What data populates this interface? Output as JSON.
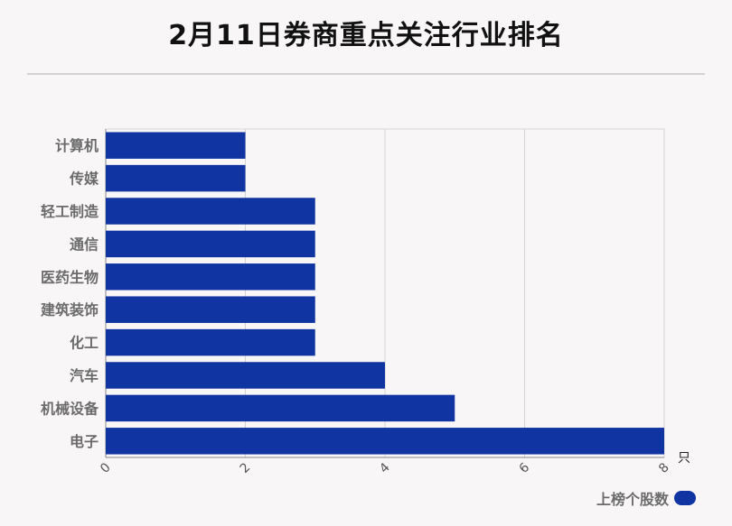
{
  "chart_data": {
    "type": "bar",
    "orientation": "horizontal",
    "title": "2月11日券商重点关注行业排名",
    "categories": [
      "计算机",
      "传媒",
      "轻工制造",
      "通信",
      "医药生物",
      "建筑装饰",
      "化工",
      "汽车",
      "机械设备",
      "电子"
    ],
    "series": [
      {
        "name": "上榜个股数",
        "values": [
          2,
          2,
          3,
          3,
          3,
          3,
          3,
          4,
          5,
          8
        ]
      }
    ],
    "xlim": [
      0,
      8
    ],
    "xticks": [
      "0",
      "2",
      "4",
      "6",
      "8"
    ],
    "x_unit": "只",
    "grid": true,
    "legend_position": "bottom-right",
    "bar_color": "#1035a3"
  }
}
